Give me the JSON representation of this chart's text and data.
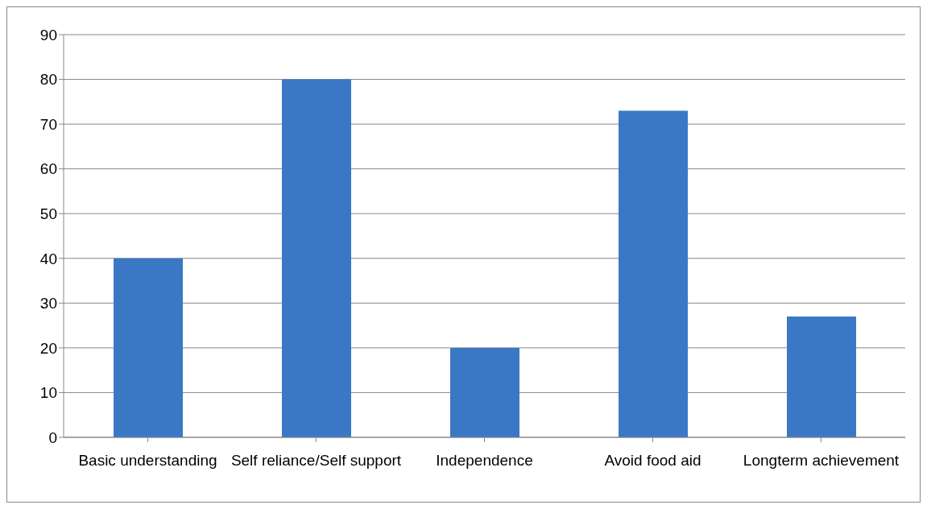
{
  "chart_data": {
    "type": "bar",
    "categories": [
      "Basic understanding",
      "Self reliance/Self support",
      "Independence",
      "Avoid food aid",
      "Longterm achievement"
    ],
    "values": [
      40,
      80,
      20,
      73,
      27
    ],
    "color": "#3a78c6",
    "ylim": [
      0,
      90
    ],
    "yticks": [
      0,
      10,
      20,
      30,
      40,
      50,
      60,
      70,
      80,
      90
    ],
    "grid": "y"
  }
}
